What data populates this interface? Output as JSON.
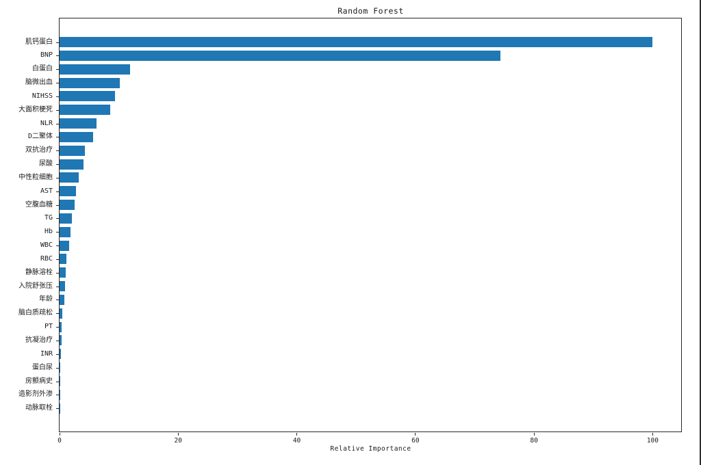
{
  "window": {
    "background": "#ffffff",
    "right_border_color": "#2e2e2e"
  },
  "chart_data": {
    "type": "bar",
    "orientation": "horizontal",
    "title": "Random Forest",
    "xlabel": "Relative Importance",
    "ylabel": "",
    "bar_color": "#1f77b4",
    "grid": false,
    "legend": null,
    "xlim": [
      0,
      104.8
    ],
    "x_ticks": [
      0,
      20,
      40,
      60,
      80,
      100
    ],
    "x_tick_labels": [
      "0",
      "20",
      "40",
      "60",
      "80",
      "100"
    ],
    "categories": [
      "肌钙蛋白",
      "BNP",
      "白蛋白",
      "脑微出血",
      "NIHSS",
      "大面积梗死",
      "NLR",
      "D二聚体",
      "双抗治疗",
      "尿酸",
      "中性粒细胞",
      "AST",
      "空腹血糖",
      "TG",
      "Hb",
      "WBC",
      "RBC",
      "静脉溶栓",
      "入院舒张压",
      "年龄",
      "脑白质疏松",
      "PT",
      "抗凝治疗",
      "INR",
      "蛋白尿",
      "房颤病史",
      "造影剂外渗",
      "动脉取栓"
    ],
    "values": [
      100.0,
      74.3,
      11.9,
      10.2,
      9.3,
      8.5,
      6.2,
      5.7,
      4.3,
      4.0,
      3.2,
      2.8,
      2.5,
      2.1,
      1.8,
      1.6,
      1.1,
      1.0,
      0.9,
      0.8,
      0.45,
      0.4,
      0.3,
      0.25,
      0.05,
      0.05,
      0.03,
      0.02
    ]
  }
}
